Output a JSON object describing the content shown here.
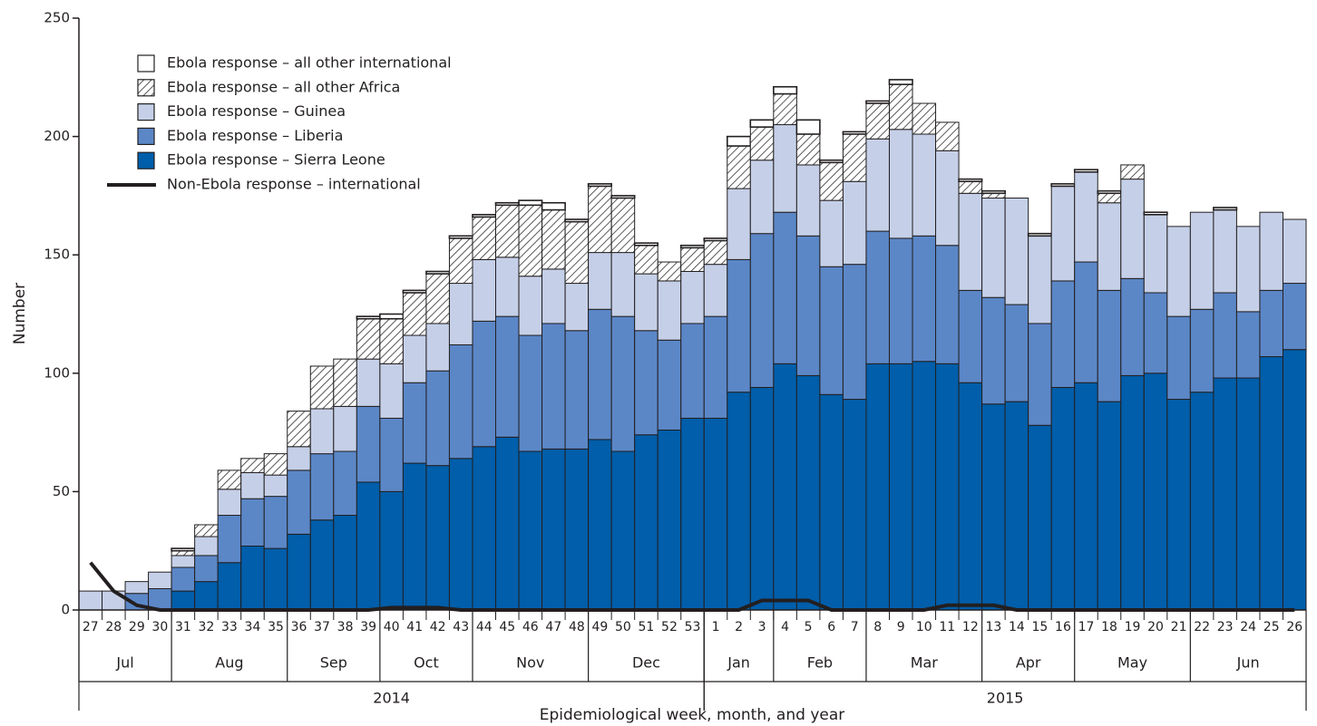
{
  "chart_data": {
    "type": "bar",
    "stacked": true,
    "y_label": "Number",
    "x_label": "Epidemiological week, month, and year",
    "ylim": [
      0,
      250
    ],
    "yticks": [
      0,
      50,
      100,
      150,
      200,
      250
    ],
    "categories": [
      "27",
      "28",
      "29",
      "30",
      "31",
      "32",
      "33",
      "34",
      "35",
      "36",
      "37",
      "38",
      "39",
      "40",
      "41",
      "42",
      "43",
      "44",
      "45",
      "46",
      "47",
      "48",
      "49",
      "50",
      "51",
      "52",
      "53",
      "1",
      "2",
      "3",
      "4",
      "5",
      "6",
      "7",
      "8",
      "9",
      "10",
      "11",
      "12",
      "13",
      "14",
      "15",
      "16",
      "17",
      "18",
      "19",
      "20",
      "21",
      "22",
      "23",
      "24",
      "25",
      "26"
    ],
    "months": [
      {
        "label": "Jul",
        "first": "27",
        "last": "30"
      },
      {
        "label": "Aug",
        "first": "31",
        "last": "35"
      },
      {
        "label": "Sep",
        "first": "36",
        "last": "39"
      },
      {
        "label": "Oct",
        "first": "40",
        "last": "43"
      },
      {
        "label": "Nov",
        "first": "44",
        "last": "48"
      },
      {
        "label": "Dec",
        "first": "49",
        "last": "53"
      },
      {
        "label": "Jan",
        "first": "1",
        "last": "3"
      },
      {
        "label": "Feb",
        "first": "4",
        "last": "7"
      },
      {
        "label": "Mar",
        "first": "8",
        "last": "12"
      },
      {
        "label": "Apr",
        "first": "13",
        "last": "16"
      },
      {
        "label": "May",
        "first": "17",
        "last": "21"
      },
      {
        "label": "Jun",
        "first": "22",
        "last": "26"
      }
    ],
    "years": [
      {
        "label": "2014",
        "first": "27",
        "last": "53"
      },
      {
        "label": "2015",
        "first": "1",
        "last": "26"
      }
    ],
    "series": [
      {
        "name": "Ebola response – Sierra Leone",
        "color": "#005eaa",
        "values": [
          0,
          0,
          0,
          0,
          8,
          12,
          20,
          27,
          26,
          32,
          38,
          40,
          54,
          50,
          62,
          61,
          64,
          69,
          73,
          67,
          68,
          68,
          72,
          67,
          74,
          76,
          81,
          81,
          92,
          94,
          104,
          99,
          91,
          89,
          104,
          104,
          105,
          104,
          96,
          87,
          88,
          78,
          94,
          96,
          88,
          99,
          100,
          89,
          92,
          98,
          98,
          107,
          110
        ]
      },
      {
        "name": "Ebola response – Liberia",
        "color": "#5b87c7",
        "values": [
          0,
          0,
          7,
          9,
          10,
          11,
          20,
          20,
          22,
          27,
          28,
          27,
          32,
          31,
          34,
          40,
          48,
          53,
          51,
          49,
          53,
          50,
          55,
          57,
          44,
          38,
          40,
          43,
          56,
          65,
          64,
          59,
          54,
          57,
          56,
          53,
          53,
          50,
          39,
          45,
          41,
          43,
          45,
          51,
          47,
          41,
          34,
          35,
          35,
          36,
          28,
          28,
          28
        ]
      },
      {
        "name": "Ebola response – Guinea",
        "color": "#c5d0e8",
        "values": [
          8,
          8,
          5,
          7,
          5,
          8,
          11,
          11,
          9,
          10,
          19,
          19,
          20,
          23,
          20,
          20,
          26,
          26,
          25,
          25,
          23,
          20,
          24,
          27,
          24,
          25,
          22,
          22,
          30,
          31,
          37,
          30,
          28,
          35,
          39,
          46,
          43,
          40,
          41,
          42,
          45,
          37,
          40,
          38,
          37,
          42,
          33,
          38,
          41,
          35,
          36,
          33,
          27
        ]
      },
      {
        "name": "Ebola response – all other Africa",
        "color": "#333333",
        "pattern": "hatch",
        "values": [
          0,
          0,
          0,
          0,
          2,
          5,
          8,
          6,
          9,
          15,
          18,
          20,
          17,
          19,
          18,
          21,
          19,
          18,
          22,
          30,
          25,
          26,
          28,
          23,
          12,
          8,
          10,
          10,
          18,
          14,
          13,
          13,
          16,
          20,
          15,
          19,
          13,
          12,
          5,
          2,
          0,
          0,
          0,
          0,
          4,
          6,
          0,
          0,
          0,
          0,
          0,
          0,
          0
        ]
      },
      {
        "name": "Ebola response – all other international",
        "color": "#ffffff",
        "values": [
          0,
          0,
          0,
          0,
          1,
          0,
          0,
          0,
          0,
          0,
          0,
          0,
          1,
          2,
          1,
          1,
          1,
          1,
          1,
          2,
          3,
          1,
          1,
          1,
          1,
          0,
          1,
          1,
          4,
          3,
          3,
          6,
          1,
          1,
          1,
          2,
          0,
          0,
          1,
          1,
          0,
          1,
          1,
          1,
          1,
          0,
          1,
          0,
          0,
          1,
          0,
          0,
          0
        ]
      },
      {
        "name": "Non-Ebola response – international",
        "type": "line",
        "color": "#231f20",
        "values": [
          20,
          8,
          2,
          0,
          0,
          0,
          0,
          0,
          0,
          0,
          0,
          0,
          0,
          1,
          1,
          1,
          0,
          0,
          0,
          0,
          0,
          0,
          0,
          0,
          0,
          0,
          0,
          0,
          0,
          4,
          4,
          4,
          0,
          0,
          0,
          0,
          0,
          2,
          2,
          2,
          0,
          0,
          0,
          0,
          0,
          0,
          0,
          0,
          0,
          0,
          0,
          0,
          0
        ]
      }
    ]
  }
}
